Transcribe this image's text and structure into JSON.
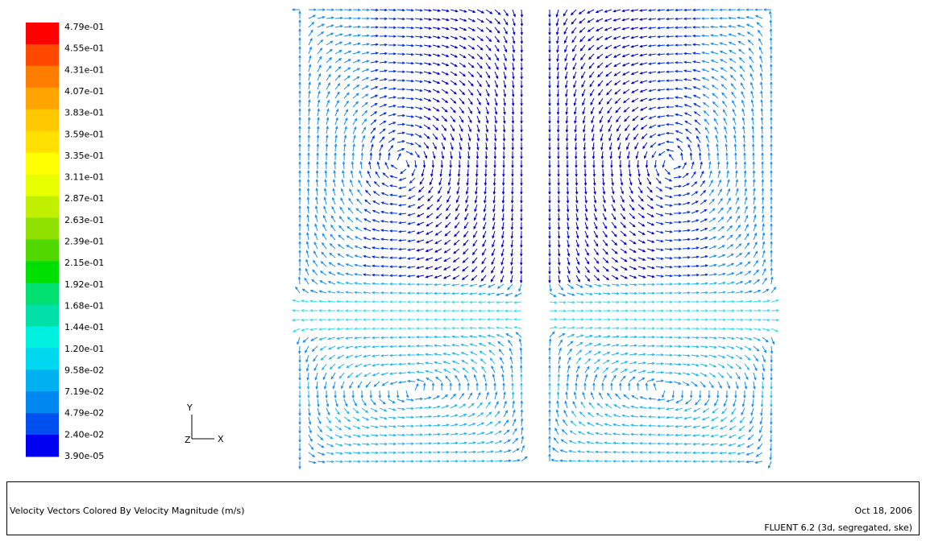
{
  "colorbar": {
    "labels": [
      "4.79e-01",
      "4.55e-01",
      "4.31e-01",
      "4.07e-01",
      "3.83e-01",
      "3.59e-01",
      "3.35e-01",
      "3.11e-01",
      "2.87e-01",
      "2.63e-01",
      "2.39e-01",
      "2.15e-01",
      "1.92e-01",
      "1.68e-01",
      "1.44e-01",
      "1.20e-01",
      "9.58e-02",
      "7.19e-02",
      "4.79e-02",
      "2.40e-02",
      "3.90e-05"
    ],
    "colors": [
      "#ff0000",
      "#ff4800",
      "#ff7e00",
      "#ffa400",
      "#ffc800",
      "#ffe000",
      "#ffff00",
      "#e8ff00",
      "#c0f000",
      "#90e000",
      "#50d800",
      "#00e000",
      "#00e070",
      "#00e0a8",
      "#00f0e0",
      "#00d8f0",
      "#00b0f0",
      "#0088f0",
      "#0050f0",
      "#0000f0"
    ]
  },
  "axes": {
    "y": "Y",
    "x": "X",
    "z": "Z"
  },
  "footer": {
    "title": "Velocity Vectors Colored By Velocity Magnitude (m/s)",
    "date": "Oct 18, 2006",
    "software": "FLUENT 6.2 (3d, segregated, ske)"
  }
}
